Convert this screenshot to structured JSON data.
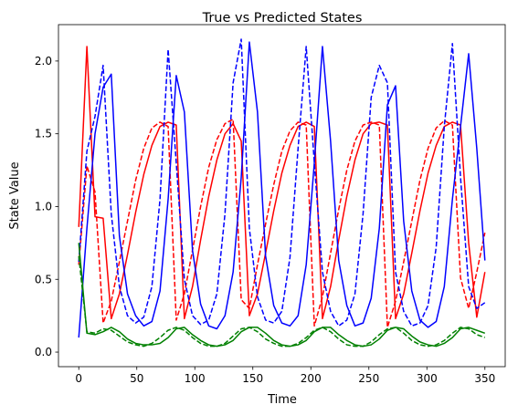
{
  "chart_data": {
    "type": "line",
    "title": "True vs Predicted States",
    "xlabel": "Time",
    "ylabel": "State Value",
    "xlim": [
      -17.5,
      367.5
    ],
    "ylim": [
      -0.1,
      2.25
    ],
    "xticks": [
      0,
      50,
      100,
      150,
      200,
      250,
      300,
      350
    ],
    "yticks": [
      0.0,
      0.5,
      1.0,
      1.5,
      2.0
    ],
    "ytick_labels": [
      "0.0",
      "0.5",
      "1.0",
      "1.5",
      "2.0"
    ],
    "grid": false,
    "legend": "none",
    "series": [
      {
        "color": "#ff0000",
        "dash": "solid",
        "points": [
          [
            0,
            0.86
          ],
          [
            7,
            2.1
          ],
          [
            14,
            0.93
          ],
          [
            21,
            0.92
          ],
          [
            28,
            0.23
          ],
          [
            35,
            0.4
          ],
          [
            42,
            0.67
          ],
          [
            49,
            0.96
          ],
          [
            56,
            1.22
          ],
          [
            63,
            1.42
          ],
          [
            70,
            1.55
          ],
          [
            77,
            1.58
          ],
          [
            84,
            1.56
          ],
          [
            91,
            0.23
          ],
          [
            98,
            0.45
          ],
          [
            105,
            0.77
          ],
          [
            112,
            1.07
          ],
          [
            119,
            1.32
          ],
          [
            126,
            1.5
          ],
          [
            133,
            1.57
          ],
          [
            140,
            1.45
          ],
          [
            147,
            0.25
          ],
          [
            154,
            0.4
          ],
          [
            161,
            0.68
          ],
          [
            168,
            0.97
          ],
          [
            175,
            1.23
          ],
          [
            182,
            1.42
          ],
          [
            189,
            1.55
          ],
          [
            196,
            1.58
          ],
          [
            203,
            1.55
          ],
          [
            210,
            0.23
          ],
          [
            217,
            0.45
          ],
          [
            224,
            0.77
          ],
          [
            231,
            1.07
          ],
          [
            238,
            1.32
          ],
          [
            245,
            1.5
          ],
          [
            252,
            1.57
          ],
          [
            259,
            1.58
          ],
          [
            266,
            1.56
          ],
          [
            273,
            0.23
          ],
          [
            280,
            0.4
          ],
          [
            287,
            0.68
          ],
          [
            294,
            0.97
          ],
          [
            301,
            1.23
          ],
          [
            308,
            1.42
          ],
          [
            315,
            1.55
          ],
          [
            322,
            1.58
          ],
          [
            329,
            1.56
          ],
          [
            336,
            0.75
          ],
          [
            343,
            0.24
          ],
          [
            350,
            0.55
          ]
        ]
      },
      {
        "color": "#ff0000",
        "dash": "dashed",
        "points": [
          [
            0,
            0.6
          ],
          [
            7,
            1.28
          ],
          [
            14,
            1.1
          ],
          [
            21,
            0.2
          ],
          [
            28,
            0.35
          ],
          [
            35,
            0.62
          ],
          [
            42,
            0.9
          ],
          [
            49,
            1.18
          ],
          [
            56,
            1.4
          ],
          [
            63,
            1.54
          ],
          [
            70,
            1.58
          ],
          [
            77,
            1.55
          ],
          [
            84,
            0.22
          ],
          [
            91,
            0.4
          ],
          [
            98,
            0.7
          ],
          [
            105,
            1.0
          ],
          [
            112,
            1.27
          ],
          [
            119,
            1.46
          ],
          [
            126,
            1.57
          ],
          [
            133,
            1.6
          ],
          [
            140,
            0.36
          ],
          [
            147,
            0.3
          ],
          [
            154,
            0.6
          ],
          [
            161,
            0.88
          ],
          [
            168,
            1.15
          ],
          [
            175,
            1.38
          ],
          [
            182,
            1.52
          ],
          [
            189,
            1.58
          ],
          [
            196,
            1.56
          ],
          [
            203,
            0.18
          ],
          [
            210,
            0.38
          ],
          [
            217,
            0.68
          ],
          [
            224,
            0.98
          ],
          [
            231,
            1.25
          ],
          [
            238,
            1.45
          ],
          [
            245,
            1.56
          ],
          [
            252,
            1.58
          ],
          [
            259,
            1.56
          ],
          [
            266,
            0.17
          ],
          [
            273,
            0.35
          ],
          [
            280,
            0.62
          ],
          [
            287,
            0.9
          ],
          [
            294,
            1.18
          ],
          [
            301,
            1.4
          ],
          [
            308,
            1.54
          ],
          [
            315,
            1.59
          ],
          [
            322,
            1.56
          ],
          [
            329,
            0.51
          ],
          [
            336,
            0.3
          ],
          [
            343,
            0.55
          ],
          [
            350,
            0.82
          ]
        ]
      },
      {
        "color": "#0000ff",
        "dash": "solid",
        "points": [
          [
            0,
            0.1
          ],
          [
            7,
            0.85
          ],
          [
            14,
            1.5
          ],
          [
            21,
            1.82
          ],
          [
            28,
            1.91
          ],
          [
            35,
            0.8
          ],
          [
            42,
            0.4
          ],
          [
            49,
            0.25
          ],
          [
            56,
            0.18
          ],
          [
            63,
            0.21
          ],
          [
            70,
            0.42
          ],
          [
            77,
            1.05
          ],
          [
            84,
            1.9
          ],
          [
            91,
            1.65
          ],
          [
            98,
            0.7
          ],
          [
            105,
            0.33
          ],
          [
            112,
            0.18
          ],
          [
            119,
            0.16
          ],
          [
            126,
            0.25
          ],
          [
            133,
            0.55
          ],
          [
            140,
            1.2
          ],
          [
            147,
            2.13
          ],
          [
            154,
            1.65
          ],
          [
            161,
            0.66
          ],
          [
            168,
            0.32
          ],
          [
            175,
            0.2
          ],
          [
            182,
            0.18
          ],
          [
            189,
            0.25
          ],
          [
            196,
            0.6
          ],
          [
            203,
            1.3
          ],
          [
            210,
            2.1
          ],
          [
            217,
            1.45
          ],
          [
            224,
            0.63
          ],
          [
            231,
            0.32
          ],
          [
            238,
            0.18
          ],
          [
            245,
            0.2
          ],
          [
            252,
            0.37
          ],
          [
            259,
            0.85
          ],
          [
            266,
            1.7
          ],
          [
            273,
            1.83
          ],
          [
            280,
            0.9
          ],
          [
            287,
            0.42
          ],
          [
            294,
            0.22
          ],
          [
            301,
            0.17
          ],
          [
            308,
            0.21
          ],
          [
            315,
            0.45
          ],
          [
            322,
            1.05
          ],
          [
            329,
            1.55
          ],
          [
            336,
            2.05
          ],
          [
            343,
            1.4
          ],
          [
            350,
            0.63
          ]
        ]
      },
      {
        "color": "#0000ff",
        "dash": "dashed",
        "points": [
          [
            0,
            0.62
          ],
          [
            7,
            1.38
          ],
          [
            14,
            1.62
          ],
          [
            21,
            1.97
          ],
          [
            28,
            0.95
          ],
          [
            35,
            0.45
          ],
          [
            42,
            0.25
          ],
          [
            49,
            0.2
          ],
          [
            56,
            0.24
          ],
          [
            63,
            0.45
          ],
          [
            70,
            1.05
          ],
          [
            77,
            2.08
          ],
          [
            84,
            1.3
          ],
          [
            91,
            0.5
          ],
          [
            98,
            0.25
          ],
          [
            105,
            0.19
          ],
          [
            112,
            0.22
          ],
          [
            119,
            0.4
          ],
          [
            126,
            0.95
          ],
          [
            133,
            1.85
          ],
          [
            140,
            2.15
          ],
          [
            147,
            0.85
          ],
          [
            154,
            0.38
          ],
          [
            161,
            0.22
          ],
          [
            168,
            0.2
          ],
          [
            175,
            0.28
          ],
          [
            182,
            0.65
          ],
          [
            189,
            1.4
          ],
          [
            196,
            2.1
          ],
          [
            203,
            1.3
          ],
          [
            210,
            0.55
          ],
          [
            217,
            0.28
          ],
          [
            224,
            0.18
          ],
          [
            231,
            0.22
          ],
          [
            238,
            0.4
          ],
          [
            245,
            0.95
          ],
          [
            252,
            1.75
          ],
          [
            259,
            1.97
          ],
          [
            266,
            1.85
          ],
          [
            273,
            0.55
          ],
          [
            280,
            0.28
          ],
          [
            287,
            0.18
          ],
          [
            294,
            0.2
          ],
          [
            301,
            0.32
          ],
          [
            308,
            0.72
          ],
          [
            315,
            1.55
          ],
          [
            322,
            2.12
          ],
          [
            329,
            1.2
          ],
          [
            336,
            0.45
          ],
          [
            343,
            0.3
          ],
          [
            350,
            0.34
          ]
        ]
      },
      {
        "color": "#008000",
        "dash": "solid",
        "points": [
          [
            0,
            0.75
          ],
          [
            7,
            0.13
          ],
          [
            14,
            0.12
          ],
          [
            21,
            0.14
          ],
          [
            28,
            0.17
          ],
          [
            35,
            0.14
          ],
          [
            42,
            0.09
          ],
          [
            49,
            0.06
          ],
          [
            56,
            0.05
          ],
          [
            63,
            0.05
          ],
          [
            70,
            0.06
          ],
          [
            77,
            0.1
          ],
          [
            84,
            0.16
          ],
          [
            91,
            0.17
          ],
          [
            98,
            0.12
          ],
          [
            105,
            0.08
          ],
          [
            112,
            0.05
          ],
          [
            119,
            0.04
          ],
          [
            126,
            0.05
          ],
          [
            133,
            0.08
          ],
          [
            140,
            0.14
          ],
          [
            147,
            0.17
          ],
          [
            154,
            0.17
          ],
          [
            161,
            0.13
          ],
          [
            168,
            0.08
          ],
          [
            175,
            0.05
          ],
          [
            182,
            0.04
          ],
          [
            189,
            0.05
          ],
          [
            196,
            0.08
          ],
          [
            203,
            0.14
          ],
          [
            210,
            0.17
          ],
          [
            217,
            0.17
          ],
          [
            224,
            0.12
          ],
          [
            231,
            0.08
          ],
          [
            238,
            0.05
          ],
          [
            245,
            0.04
          ],
          [
            252,
            0.05
          ],
          [
            259,
            0.09
          ],
          [
            266,
            0.15
          ],
          [
            273,
            0.17
          ],
          [
            280,
            0.16
          ],
          [
            287,
            0.11
          ],
          [
            294,
            0.07
          ],
          [
            301,
            0.05
          ],
          [
            308,
            0.04
          ],
          [
            315,
            0.06
          ],
          [
            322,
            0.1
          ],
          [
            329,
            0.16
          ],
          [
            336,
            0.17
          ],
          [
            343,
            0.15
          ],
          [
            350,
            0.13
          ]
        ]
      },
      {
        "color": "#008000",
        "dash": "dashed",
        "points": [
          [
            0,
            0.66
          ],
          [
            7,
            0.14
          ],
          [
            14,
            0.13
          ],
          [
            21,
            0.16
          ],
          [
            28,
            0.15
          ],
          [
            35,
            0.11
          ],
          [
            42,
            0.07
          ],
          [
            49,
            0.05
          ],
          [
            56,
            0.04
          ],
          [
            63,
            0.06
          ],
          [
            70,
            0.1
          ],
          [
            77,
            0.15
          ],
          [
            84,
            0.17
          ],
          [
            91,
            0.15
          ],
          [
            98,
            0.1
          ],
          [
            105,
            0.06
          ],
          [
            112,
            0.04
          ],
          [
            119,
            0.04
          ],
          [
            126,
            0.06
          ],
          [
            133,
            0.11
          ],
          [
            140,
            0.16
          ],
          [
            147,
            0.17
          ],
          [
            154,
            0.14
          ],
          [
            161,
            0.09
          ],
          [
            168,
            0.06
          ],
          [
            175,
            0.04
          ],
          [
            182,
            0.04
          ],
          [
            189,
            0.06
          ],
          [
            196,
            0.1
          ],
          [
            203,
            0.15
          ],
          [
            210,
            0.17
          ],
          [
            217,
            0.14
          ],
          [
            224,
            0.09
          ],
          [
            231,
            0.05
          ],
          [
            238,
            0.04
          ],
          [
            245,
            0.04
          ],
          [
            252,
            0.07
          ],
          [
            259,
            0.12
          ],
          [
            266,
            0.16
          ],
          [
            273,
            0.17
          ],
          [
            280,
            0.13
          ],
          [
            287,
            0.08
          ],
          [
            294,
            0.05
          ],
          [
            301,
            0.04
          ],
          [
            308,
            0.05
          ],
          [
            315,
            0.08
          ],
          [
            322,
            0.13
          ],
          [
            329,
            0.17
          ],
          [
            336,
            0.16
          ],
          [
            343,
            0.12
          ],
          [
            350,
            0.1
          ]
        ]
      }
    ]
  }
}
